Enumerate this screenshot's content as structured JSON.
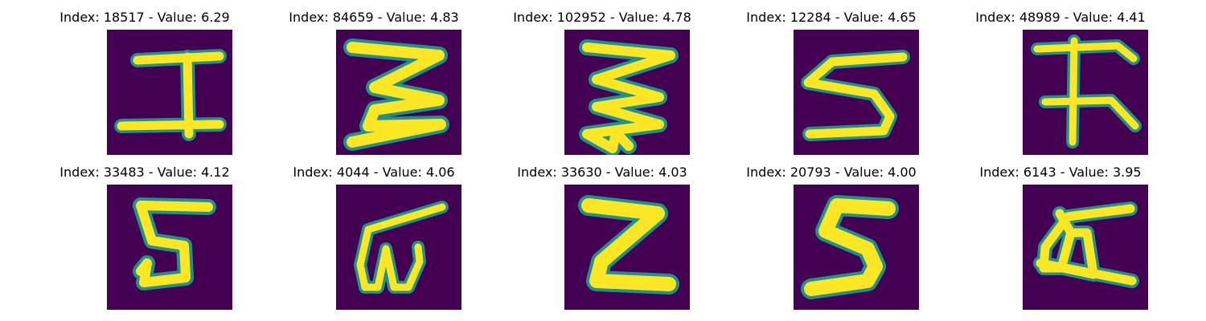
{
  "colors": {
    "background": "#440154",
    "stroke": "#fde725",
    "edge": "#21918c",
    "mid": "#5ec962"
  },
  "panels": [
    {
      "title": "Index: 18517 - Value: 6.29",
      "glyph": "I-like"
    },
    {
      "title": "Index: 84659 - Value: 4.83",
      "glyph": "3-like"
    },
    {
      "title": "Index: 102952 - Value: 4.78",
      "glyph": "zigzag"
    },
    {
      "title": "Index: 12284 - Value: 4.65",
      "glyph": "5-like"
    },
    {
      "title": "Index: 48989 - Value: 4.41",
      "glyph": "F-like"
    },
    {
      "title": "Index: 33483 - Value: 4.12",
      "glyph": "5-like"
    },
    {
      "title": "Index: 4044 - Value: 4.06",
      "glyph": "ω-like"
    },
    {
      "title": "Index: 33630 - Value: 4.03",
      "glyph": "Z-like"
    },
    {
      "title": "Index: 20793 - Value: 4.00",
      "glyph": "S-like"
    },
    {
      "title": "Index: 6143 - Value: 3.95",
      "glyph": "a-like"
    }
  ]
}
